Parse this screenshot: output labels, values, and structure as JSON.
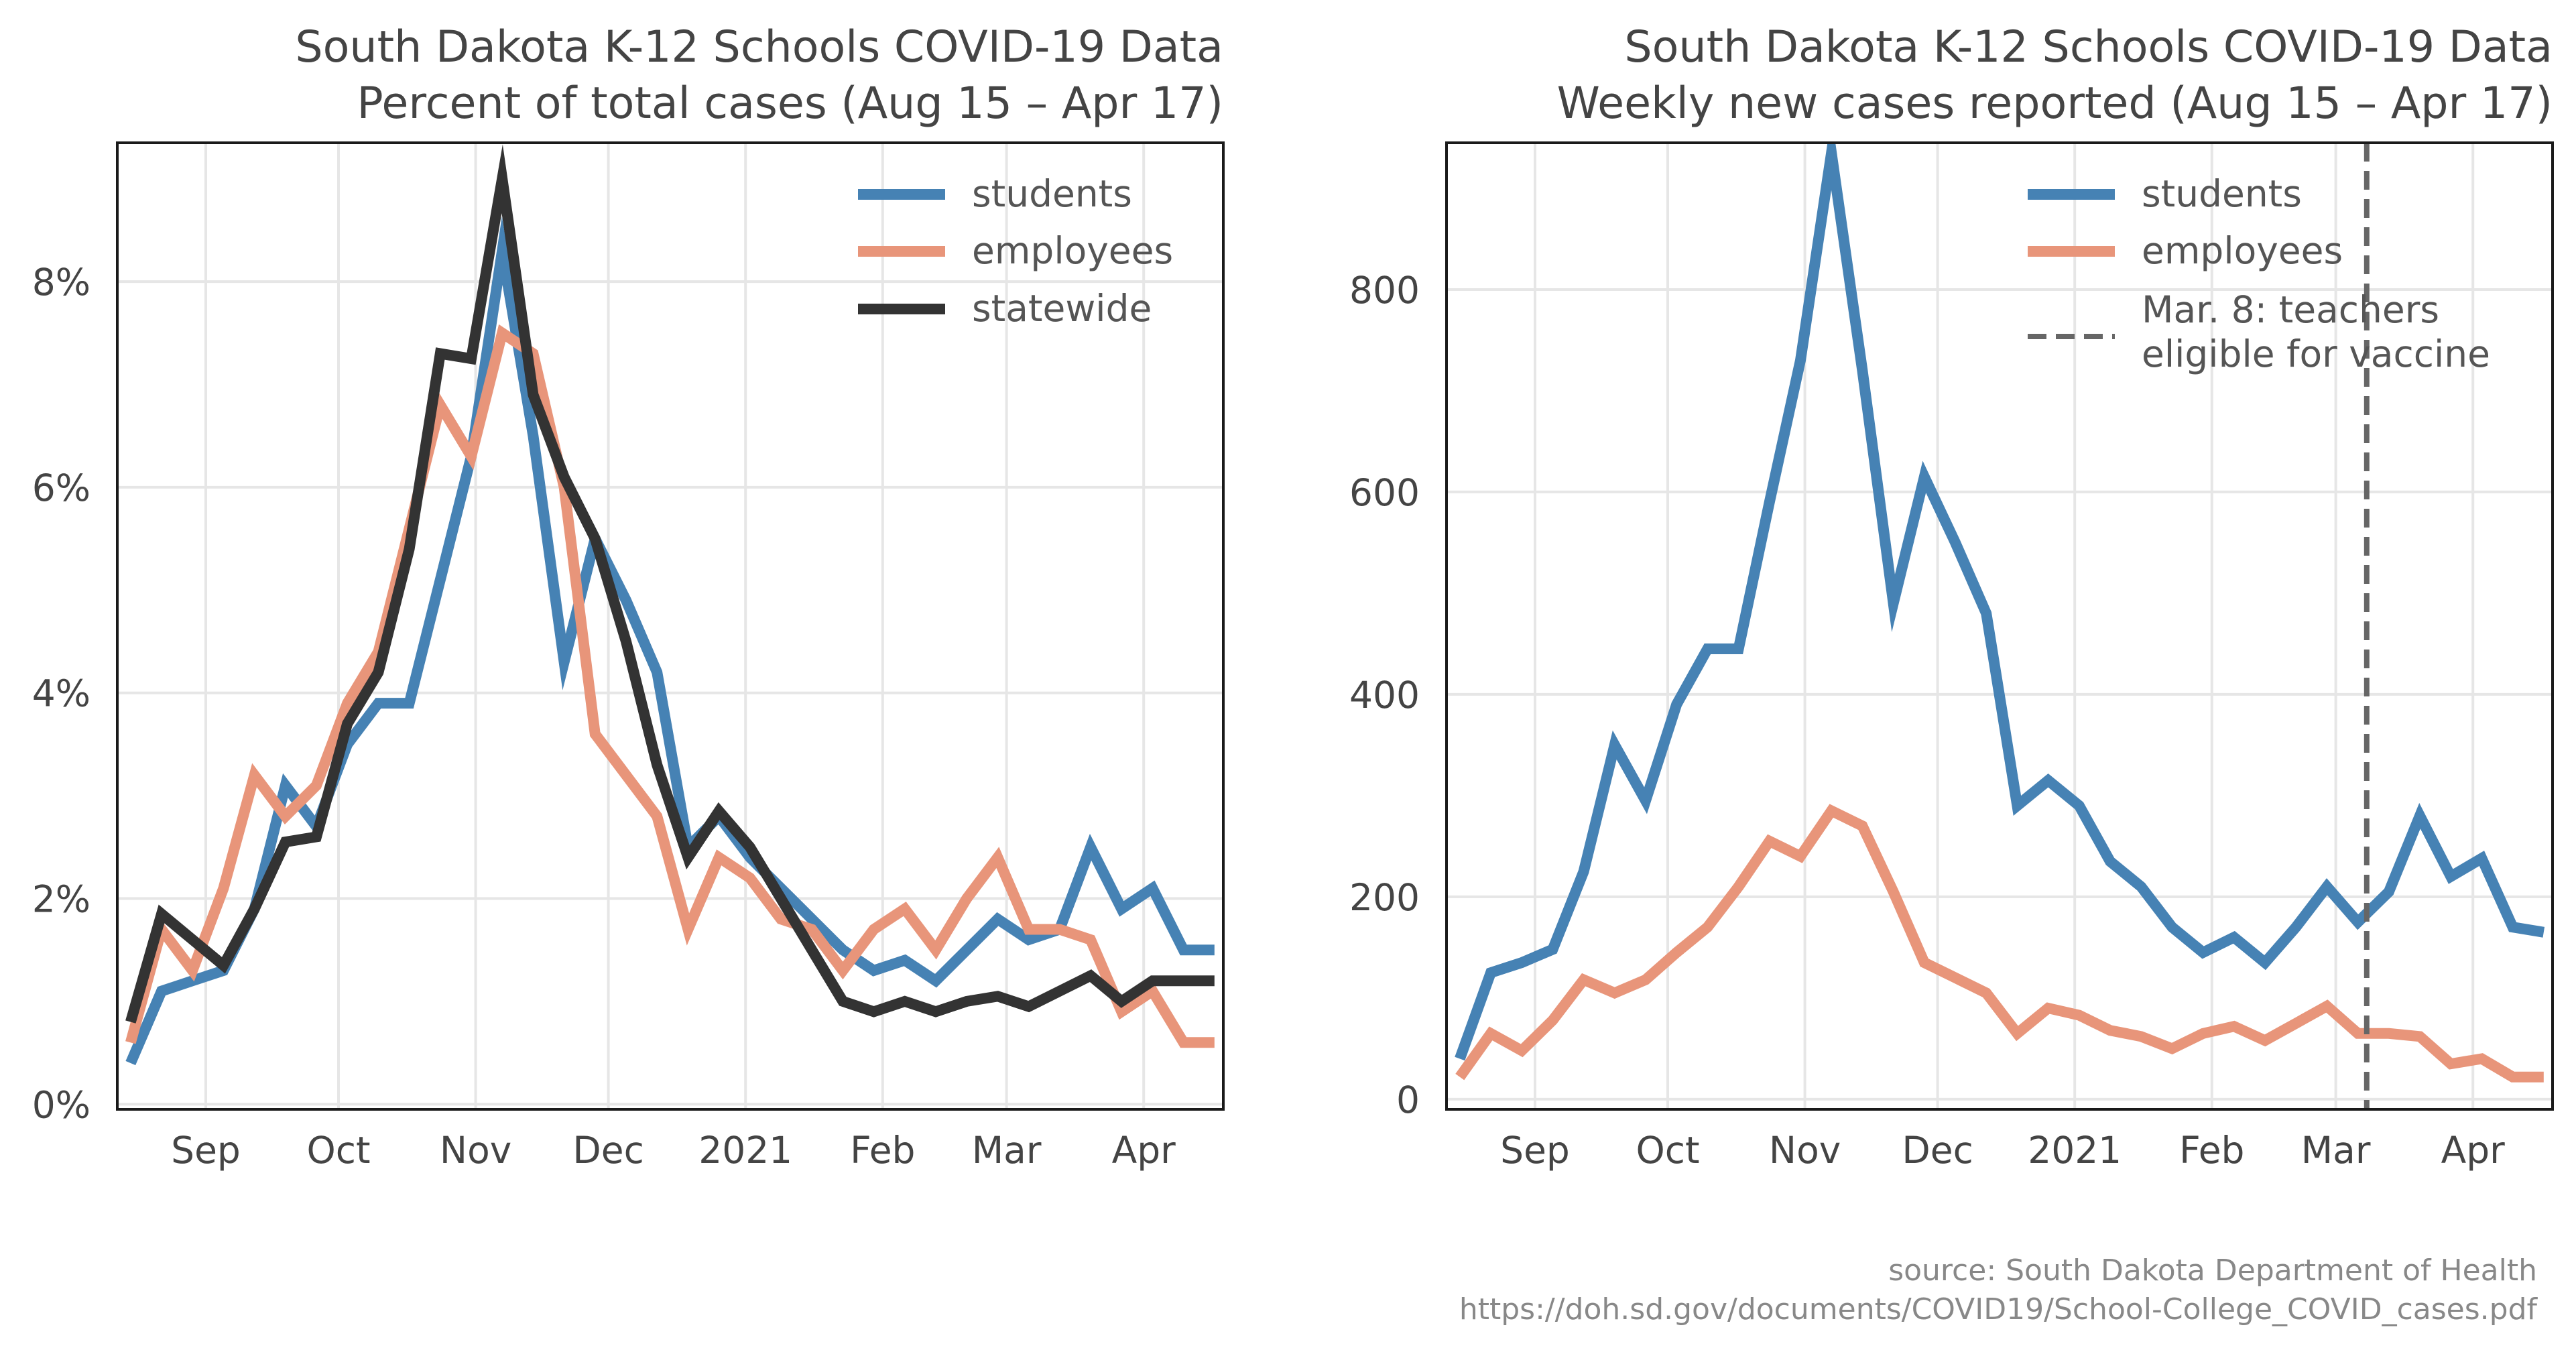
{
  "source_line1": "source: South Dakota Department of Health",
  "source_line2": "https://doh.sd.gov/documents/COVID19/School-College_COVID_cases.pdf",
  "colors": {
    "students": "#4682b4",
    "employees": "#e8957a",
    "statewide": "#333333",
    "vline": "#666666"
  },
  "chart_data": [
    {
      "type": "line",
      "title": "South Dakota K-12 Schools COVID-19 Data",
      "subtitle": "Percent of total cases (Aug 15 – Apr 17)",
      "xlabel": "",
      "ylabel": "",
      "x_tick_labels": [
        "Sep",
        "Oct",
        "Nov",
        "Dec",
        "2021",
        "Feb",
        "Mar",
        "Apr"
      ],
      "y_ticks": [
        0,
        2,
        4,
        6,
        8
      ],
      "y_tick_labels": [
        "0%",
        "2%",
        "4%",
        "6%",
        "8%"
      ],
      "ylim": [
        -0.05,
        9.35
      ],
      "grid": true,
      "legend_position": "top-right",
      "x": [
        "2020-08-15",
        "2020-08-22",
        "2020-08-29",
        "2020-09-05",
        "2020-09-12",
        "2020-09-19",
        "2020-09-26",
        "2020-10-03",
        "2020-10-10",
        "2020-10-17",
        "2020-10-24",
        "2020-10-31",
        "2020-11-07",
        "2020-11-14",
        "2020-11-21",
        "2020-11-28",
        "2020-12-05",
        "2020-12-12",
        "2020-12-19",
        "2020-12-26",
        "2021-01-02",
        "2021-01-09",
        "2021-01-16",
        "2021-01-23",
        "2021-01-30",
        "2021-02-06",
        "2021-02-13",
        "2021-02-20",
        "2021-02-27",
        "2021-03-06",
        "2021-03-13",
        "2021-03-20",
        "2021-03-27",
        "2021-04-03",
        "2021-04-10",
        "2021-04-17"
      ],
      "series": [
        {
          "name": "students",
          "values": [
            0.4,
            1.1,
            1.2,
            1.3,
            1.9,
            3.1,
            2.7,
            3.5,
            3.9,
            3.9,
            5.1,
            6.3,
            8.3,
            6.5,
            4.3,
            5.5,
            4.9,
            4.2,
            2.5,
            2.8,
            2.4,
            2.1,
            1.8,
            1.5,
            1.3,
            1.4,
            1.2,
            1.5,
            1.8,
            1.6,
            1.7,
            2.5,
            1.9,
            2.1,
            1.5,
            1.5
          ]
        },
        {
          "name": "employees",
          "values": [
            0.6,
            1.7,
            1.3,
            2.1,
            3.2,
            2.8,
            3.1,
            3.9,
            4.4,
            5.6,
            6.8,
            6.3,
            7.5,
            7.3,
            6.0,
            3.6,
            3.2,
            2.8,
            1.7,
            2.4,
            2.2,
            1.8,
            1.7,
            1.3,
            1.7,
            1.9,
            1.5,
            2.0,
            2.4,
            1.7,
            1.7,
            1.6,
            0.9,
            1.1,
            0.6,
            0.6
          ]
        },
        {
          "name": "statewide",
          "values": [
            0.8,
            1.85,
            1.6,
            1.35,
            1.9,
            2.55,
            2.6,
            3.7,
            4.2,
            5.4,
            7.3,
            7.25,
            9.0,
            6.9,
            6.1,
            5.5,
            4.5,
            3.3,
            2.4,
            2.85,
            2.5,
            2.0,
            1.5,
            1.0,
            0.9,
            1.0,
            0.9,
            1.0,
            1.05,
            0.95,
            1.1,
            1.25,
            1.0,
            1.2,
            1.2,
            1.2
          ]
        }
      ]
    },
    {
      "type": "line",
      "title": "South Dakota K-12 Schools COVID-19 Data",
      "subtitle": "Weekly new cases reported (Aug 15 – Apr 17)",
      "xlabel": "",
      "ylabel": "",
      "x_tick_labels": [
        "Sep",
        "Oct",
        "Nov",
        "Dec",
        "2021",
        "Feb",
        "Mar",
        "Apr"
      ],
      "y_ticks": [
        0,
        200,
        400,
        600,
        800
      ],
      "y_tick_labels": [
        "0",
        "200",
        "400",
        "600",
        "800"
      ],
      "ylim": [
        -10,
        945
      ],
      "grid": true,
      "legend_position": "top-right",
      "x": [
        "2020-08-15",
        "2020-08-22",
        "2020-08-29",
        "2020-09-05",
        "2020-09-12",
        "2020-09-19",
        "2020-09-26",
        "2020-10-03",
        "2020-10-10",
        "2020-10-17",
        "2020-10-24",
        "2020-10-31",
        "2020-11-07",
        "2020-11-14",
        "2020-11-21",
        "2020-11-28",
        "2020-12-05",
        "2020-12-12",
        "2020-12-19",
        "2020-12-26",
        "2021-01-02",
        "2021-01-09",
        "2021-01-16",
        "2021-01-23",
        "2021-01-30",
        "2021-02-06",
        "2021-02-13",
        "2021-02-20",
        "2021-02-27",
        "2021-03-06",
        "2021-03-13",
        "2021-03-20",
        "2021-03-27",
        "2021-04-03",
        "2021-04-10",
        "2021-04-17"
      ],
      "series": [
        {
          "name": "students",
          "values": [
            40,
            125,
            135,
            148,
            225,
            350,
            295,
            390,
            445,
            445,
            590,
            730,
            935,
            720,
            490,
            615,
            550,
            480,
            290,
            315,
            290,
            235,
            210,
            170,
            145,
            160,
            135,
            170,
            210,
            175,
            205,
            280,
            220,
            238,
            170,
            165
          ]
        },
        {
          "name": "employees",
          "values": [
            22,
            65,
            48,
            78,
            118,
            105,
            118,
            145,
            170,
            210,
            255,
            240,
            285,
            270,
            205,
            135,
            120,
            105,
            65,
            90,
            83,
            68,
            62,
            50,
            65,
            72,
            58,
            75,
            92,
            65,
            65,
            62,
            35,
            40,
            22,
            22
          ]
        }
      ],
      "annotations": [
        {
          "type": "vline",
          "x": "2021-03-08",
          "label": "Mar. 8: teachers eligible for vaccine"
        }
      ]
    }
  ]
}
